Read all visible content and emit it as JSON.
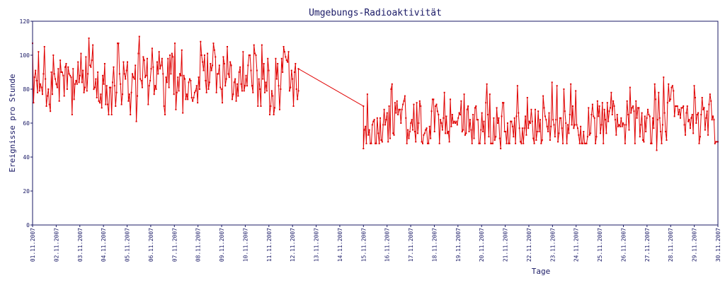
{
  "chart_data": {
    "type": "line",
    "title": "Umgebungs-Radioaktivität",
    "xlabel": "Tage",
    "ylabel": "Ereignisse pro Stunde",
    "ylim": [
      0,
      120
    ],
    "yticks": [
      0,
      20,
      40,
      60,
      80,
      100,
      120
    ],
    "xlim": [
      0,
      29
    ],
    "x_tick_labels": [
      "01.11.2007",
      "02.11.2007",
      "03.11.2007",
      "04.11.2007",
      "05.11.2007",
      "06.11.2007",
      "07.11.2007",
      "08.11.2007",
      "09.11.2007",
      "10.11.2007",
      "11.11.2007",
      "12.11.2007",
      "13.11.2007",
      "14.11.2007",
      "15.11.2007",
      "16.11.2007",
      "17.11.2007",
      "18.11.2007",
      "19.11.2007",
      "20.11.2007",
      "21.11.2007",
      "22.11.2007",
      "23.11.2007",
      "24.11.2007",
      "25.11.2007",
      "26.11.2007",
      "27.11.2007",
      "28.11.2007",
      "29.11.2007",
      "30.11.2007"
    ],
    "grid": false,
    "series": [
      {
        "color": "#e00000",
        "marker": "square",
        "segments": [
          {
            "x_start": 0.0,
            "x_end": 11.25,
            "mean": 86,
            "min": 61,
            "max": 111,
            "n": 270,
            "peaks": [
              [
                0.5,
                105
              ],
              [
                0.6,
                70
              ],
              [
                2.4,
                110
              ],
              [
                3.2,
                65
              ],
              [
                3.6,
                107
              ],
              [
                4.4,
                61
              ],
              [
                4.5,
                111
              ],
              [
                7.1,
                108
              ],
              [
                9.7,
                106
              ],
              [
                3.5,
                70
              ]
            ]
          },
          {
            "x_start": 11.25,
            "x_end": 14.0,
            "points": [
              [
                11.25,
                92
              ],
              [
                14.0,
                70
              ]
            ]
          },
          {
            "x_start": 14.0,
            "x_end": 29.0,
            "mean": 60,
            "min": 44,
            "max": 87,
            "n": 360,
            "peaks": [
              [
                14.0,
                45
              ],
              [
                15.2,
                83
              ],
              [
                19.8,
                45
              ],
              [
                20.5,
                82
              ],
              [
                22.0,
                84
              ],
              [
                24.5,
                78
              ],
              [
                26.4,
                44
              ],
              [
                26.7,
                87
              ],
              [
                28.0,
                82
              ],
              [
                29.0,
                49
              ]
            ]
          }
        ]
      }
    ]
  }
}
